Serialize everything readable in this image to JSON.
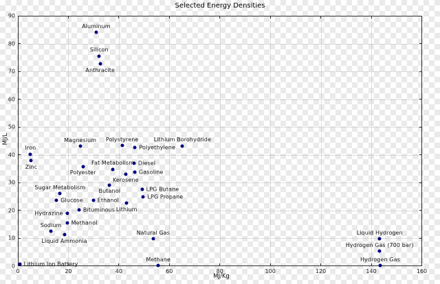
{
  "title": "Selected Energy Densities",
  "chart_data": {
    "type": "scatter",
    "title": "Selected Energy Densities",
    "xlabel": "MJ/Kg",
    "ylabel": "MJ/L",
    "xlim": [
      0,
      160
    ],
    "ylim": [
      0,
      90
    ],
    "xticks": [
      0,
      20,
      40,
      60,
      80,
      100,
      120,
      140,
      160
    ],
    "yticks": [
      0,
      10,
      20,
      30,
      40,
      50,
      60,
      70,
      80,
      90
    ],
    "grid": true,
    "legend_position": "none",
    "marker_color": "#000080",
    "grid_color": "#bdbdbd",
    "points": [
      {
        "label": "Aluminum",
        "x": 31.0,
        "y": 84.0,
        "label_pos": "above"
      },
      {
        "label": "Silicon",
        "x": 32.2,
        "y": 75.5,
        "label_pos": "above"
      },
      {
        "label": "Anthracite",
        "x": 32.6,
        "y": 72.6,
        "label_pos": "below"
      },
      {
        "label": "Polystyrene",
        "x": 41.3,
        "y": 43.3,
        "label_pos": "above"
      },
      {
        "label": "Lithium Borohydride",
        "x": 65.2,
        "y": 43.2,
        "label_pos": "above"
      },
      {
        "label": "Magnesium",
        "x": 24.7,
        "y": 43.0,
        "label_pos": "above"
      },
      {
        "label": "Polyethylene",
        "x": 46.4,
        "y": 42.5,
        "label_pos": "right"
      },
      {
        "label": "Iron",
        "x": 5.0,
        "y": 40.2,
        "label_pos": "above"
      },
      {
        "label": "Zinc",
        "x": 5.3,
        "y": 37.8,
        "label_pos": "below"
      },
      {
        "label": "Diesel",
        "x": 46.0,
        "y": 37.0,
        "label_pos": "right"
      },
      {
        "label": "Polyester",
        "x": 25.8,
        "y": 35.8,
        "label_pos": "below"
      },
      {
        "label": "Fat Metabolism",
        "x": 37.6,
        "y": 34.8,
        "label_pos": "above"
      },
      {
        "label": "Gasoline",
        "x": 46.3,
        "y": 33.8,
        "label_pos": "right"
      },
      {
        "label": "Kerosene",
        "x": 42.7,
        "y": 33.0,
        "label_pos": "below"
      },
      {
        "label": "Butanol",
        "x": 36.3,
        "y": 29.1,
        "label_pos": "below"
      },
      {
        "label": "LPG Butane",
        "x": 49.2,
        "y": 27.5,
        "label_pos": "right"
      },
      {
        "label": "Sugar Metabolism",
        "x": 16.7,
        "y": 26.0,
        "label_pos": "above"
      },
      {
        "label": "LPG Propane",
        "x": 49.7,
        "y": 24.8,
        "label_pos": "right"
      },
      {
        "label": "Ethanol",
        "x": 29.9,
        "y": 23.7,
        "label_pos": "right"
      },
      {
        "label": "Glucose",
        "x": 15.3,
        "y": 23.6,
        "label_pos": "right"
      },
      {
        "label": "Lithium",
        "x": 43.1,
        "y": 22.5,
        "label_pos": "below"
      },
      {
        "label": "Bituminous",
        "x": 24.2,
        "y": 20.2,
        "label_pos": "right"
      },
      {
        "label": "Hydrazine",
        "x": 19.5,
        "y": 19.0,
        "label_pos": "left"
      },
      {
        "label": "Methanol",
        "x": 19.5,
        "y": 15.5,
        "label_pos": "right"
      },
      {
        "label": "Sodium",
        "x": 13.1,
        "y": 12.4,
        "label_pos": "above"
      },
      {
        "label": "Liquid Ammonia",
        "x": 18.4,
        "y": 11.2,
        "label_pos": "below"
      },
      {
        "label": "Natural Gas",
        "x": 53.6,
        "y": 9.7,
        "label_pos": "above"
      },
      {
        "label": "Liquid Hydrogen",
        "x": 143.3,
        "y": 9.7,
        "label_pos": "above"
      },
      {
        "label": "Hydrogen Gas (700 bar)",
        "x": 143.3,
        "y": 5.3,
        "label_pos": "above"
      },
      {
        "label": "Lithium Ion Battery",
        "x": 0.7,
        "y": 0.5,
        "label_pos": "right"
      },
      {
        "label": "Methane",
        "x": 55.6,
        "y": 0.05,
        "label_pos": "above"
      },
      {
        "label": "Hydrogen Gas",
        "x": 143.5,
        "y": 0.05,
        "label_pos": "above"
      }
    ]
  }
}
